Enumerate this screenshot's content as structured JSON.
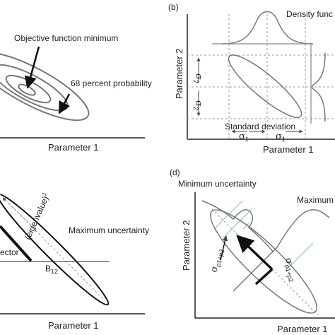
{
  "panels": {
    "a": {
      "xlabel": "Parameter 1",
      "annotations": {
        "minimum": "Objective function minimum",
        "probability": "68 percent probability"
      }
    },
    "b": {
      "tag": "(b)",
      "xlabel": "Parameter 1",
      "ylabel": "Parameter 2",
      "density": "Density func",
      "std_dev": "Standard deviation",
      "sigma": "σ",
      "sub_1": "1",
      "sub_2": "2"
    },
    "c": {
      "xlabel": "Parameter 1",
      "eigen": "(eigenvalue)",
      "eigen_sup": "1",
      "max_unc": "Maximum uncertainty",
      "vector": "ector",
      "b12": "B",
      "b12_sub": "12"
    },
    "d": {
      "tag": "(d)",
      "xlabel": "Parameter 1",
      "ylabel": "Parameter 2",
      "min_unc": "Minimum uncertainty",
      "max_unc": "Maximum",
      "sigma": "σ",
      "sub_p1p2": "p1+p2"
    }
  },
  "colors": {
    "ink": "#222222",
    "curve": "#777777",
    "guide": "#999999",
    "green": "#8cc9b6"
  }
}
